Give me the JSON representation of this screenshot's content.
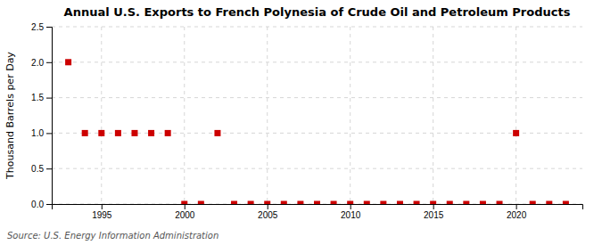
{
  "chart_data": {
    "type": "scatter",
    "title": "Annual U.S. Exports to French Polynesia of Crude Oil and Petroleum Products",
    "ylabel": "Thousand Barrels per Day",
    "source": "Source: U.S. Energy Information Administration",
    "x": [
      1993,
      1994,
      1995,
      1996,
      1997,
      1998,
      1999,
      2000,
      2001,
      2002,
      2003,
      2004,
      2005,
      2006,
      2007,
      2008,
      2009,
      2010,
      2011,
      2012,
      2013,
      2014,
      2015,
      2016,
      2017,
      2018,
      2019,
      2020,
      2021,
      2022,
      2023
    ],
    "values": [
      2.0,
      1.0,
      1.0,
      1.0,
      1.0,
      1.0,
      1.0,
      0.0,
      0.0,
      1.0,
      0.0,
      0.0,
      0.0,
      0.0,
      0.0,
      0.0,
      0.0,
      0.0,
      0.0,
      0.0,
      0.0,
      0.0,
      0.0,
      0.0,
      0.0,
      0.0,
      0.0,
      1.0,
      0.0,
      0.0,
      0.0
    ],
    "color": "#cc0000",
    "marker": "square",
    "xlim": [
      1992,
      2024
    ],
    "ylim": [
      0,
      2.5
    ],
    "xticks": [
      1995,
      2000,
      2005,
      2010,
      2015,
      2020
    ],
    "yticks": [
      {
        "value": 0.0,
        "label": "0.0"
      },
      0.5,
      {
        "value": 1.0,
        "label": "1.0"
      },
      1.5,
      {
        "value": 2.0,
        "label": "2.0"
      },
      2.5
    ],
    "grid": true
  }
}
